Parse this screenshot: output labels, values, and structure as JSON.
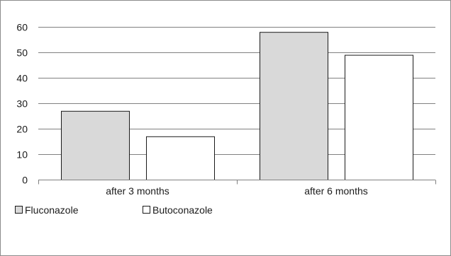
{
  "chart_data": {
    "type": "bar",
    "categories": [
      "after 3 months",
      "after 6 months"
    ],
    "series": [
      {
        "name": "Fluconazole",
        "values": [
          27,
          58
        ],
        "color": "#d9d9d9"
      },
      {
        "name": "Butoconazole",
        "values": [
          17,
          49
        ],
        "color": "#ffffff"
      }
    ],
    "yticks": [
      0,
      10,
      20,
      30,
      40,
      50,
      60
    ],
    "ylim": [
      0,
      60
    ],
    "grid": true,
    "legend_position": "bottom-left",
    "bar_stroke": "#1a1a1a",
    "grid_color": "#808080"
  }
}
